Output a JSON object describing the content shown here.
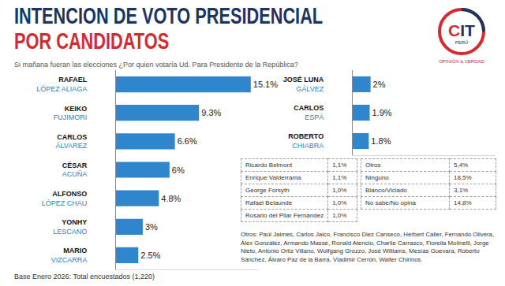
{
  "header": {
    "title": [
      "INTENCION DE VOTO PRESIDENCIAL",
      "POR CANDIDATOS"
    ],
    "subtitle": "Si mañana fueran las elecciones ¿Por quien votaría Ud. Para Presidente de la República?"
  },
  "logo": {
    "text": "CIT",
    "sub": "PERÚ",
    "tagline": "OPINIÓN & VERDAD"
  },
  "chart_data": [
    {
      "type": "bar",
      "orientation": "horizontal",
      "categories": [
        "RAFAEL\nLÓPEZ ALIAGA",
        "KEIKO\nFUJIMORI",
        "CARLOS\nÁLVAREZ",
        "CÉSAR\nACUÑA",
        "ALFONSO\nLÓPEZ CHAU",
        "YONHY\nLESCANO",
        "MARIO\nVIZCARRA"
      ],
      "values": [
        15.1,
        9.3,
        6.6,
        6,
        4.8,
        3,
        2.5
      ],
      "value_labels": [
        "15.1%",
        "9.3%",
        "6.6%",
        "6%",
        "4.8%",
        "3%",
        "2.5%"
      ],
      "color": "#2f86cc",
      "xlim": [
        0,
        16
      ],
      "xticks": [],
      "tick_labels": "y",
      "data_labels": true,
      "grid": false
    },
    {
      "type": "bar",
      "orientation": "horizontal",
      "categories": [
        "JOSÉ LUNA\nGÁLVEZ",
        "CARLOS\nESPÁ",
        "ROBERTO\nCHIABRA"
      ],
      "values": [
        2,
        1.9,
        1.8
      ],
      "value_labels": [
        "2%",
        "1.9%",
        "1.8%"
      ],
      "color": "#2f86cc",
      "xlim": [
        0,
        16
      ],
      "xticks": [],
      "tick_labels": "y",
      "data_labels": true,
      "grid": false
    }
  ],
  "table": {
    "left": [
      [
        "Ricardo Belmont",
        "1,1%"
      ],
      [
        "Enrique Valderrama",
        "1,1%"
      ],
      [
        "George Forsyth",
        "1,0%"
      ],
      [
        "Rafael Belaunde",
        "1,0%"
      ],
      [
        "Rosario del Pilar Fernández",
        "1,0%"
      ]
    ],
    "right": [
      [
        "Otros",
        "5,4%"
      ],
      [
        "Ninguno",
        "18,5%"
      ],
      [
        "Blanco/Viciado",
        "3,1%"
      ],
      [
        "No sabe/No opina",
        "14,8%"
      ]
    ]
  },
  "note": "Otros: Paúl Jaimes, Carlos Jaico, Francisco Diez Canseco, Herbert Caller, Fernando Olivera, Álex González, Armando Massé, Ronald Atencio, Charlie Carrasco, Fiorella Molinelli, Jorge Nieto, Antonio Ortiz Villano, Wolfgang Grozzo, José Williams, Mesías Guevara, Roberto Sánchez, Álvaro Paz de la Barra, Vladimir Cerrón, Walter Chirinos",
  "base": "Base Enero 2026: Total encuestados (1,220)"
}
